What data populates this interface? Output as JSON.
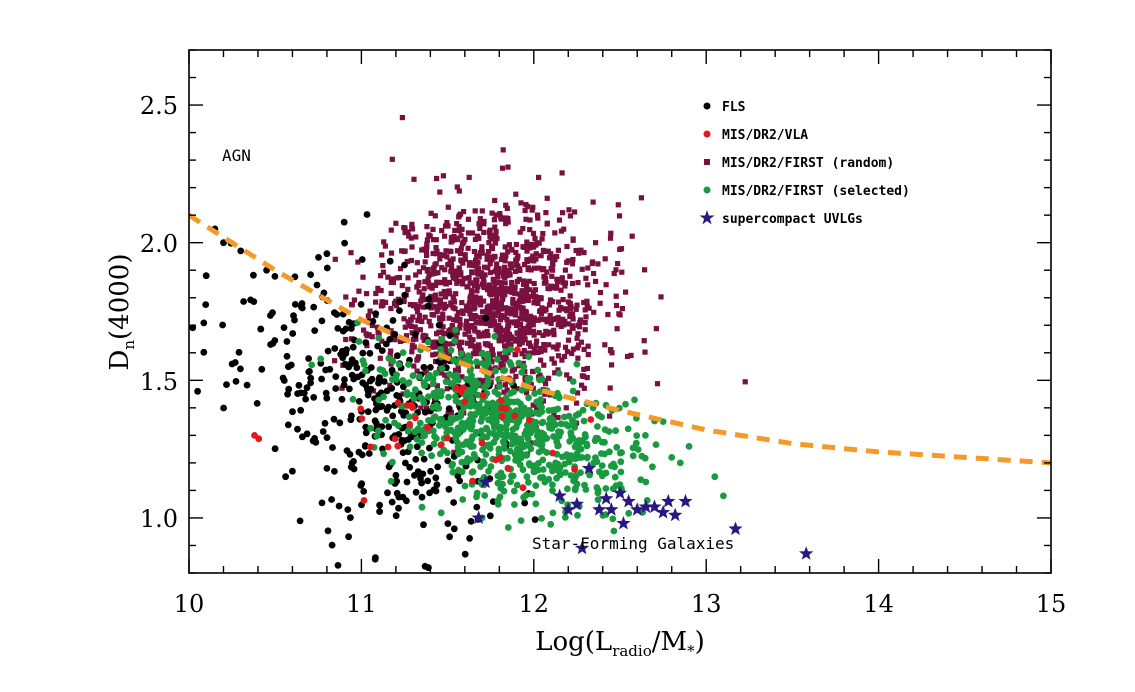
{
  "chart_data": {
    "type": "scatter",
    "xlabel": "Log(L",
    "xlabel_sub1": "radio",
    "xlabel_mid": "/M",
    "xlabel_sub2": "*",
    "xlabel_end": ")",
    "ylabel": "D",
    "ylabel_sub": "n",
    "ylabel_end": "(4000)",
    "xlim": [
      10,
      15
    ],
    "ylim": [
      0.8,
      2.7
    ],
    "xticks": [
      "10",
      "11",
      "12",
      "13",
      "14",
      "15"
    ],
    "yticks": [
      "1.0",
      "1.5",
      "2.0",
      "2.5"
    ],
    "annotations": {
      "agn": "AGN",
      "sf": "Star-Forming Galaxies"
    },
    "legend": [
      {
        "label": "FLS",
        "color": "#000000",
        "marker": "circle"
      },
      {
        "label": "MIS/DR2/VLA",
        "color": "#e0191f",
        "marker": "circle"
      },
      {
        "label": "MIS/DR2/FIRST (random)",
        "color": "#7a1040",
        "marker": "square"
      },
      {
        "label": "MIS/DR2/FIRST (selected)",
        "color": "#1a9a40",
        "marker": "circle"
      },
      {
        "label": "supercompact UVLGs",
        "color": "#2a1880",
        "marker": "star"
      }
    ],
    "divider_line": {
      "color": "#f39a2a",
      "x": [
        10.0,
        10.5,
        11.0,
        11.5,
        12.0,
        12.5,
        13.0,
        13.5,
        14.0,
        14.5,
        15.0
      ],
      "y": [
        2.1,
        1.9,
        1.72,
        1.58,
        1.47,
        1.39,
        1.32,
        1.27,
        1.24,
        1.22,
        1.2
      ]
    },
    "series": [
      {
        "name": "MIS/DR2/FIRST (random)",
        "cloud": {
          "cx": 11.75,
          "cy": 1.78,
          "sx": 0.32,
          "sy": 0.18,
          "n": 1300,
          "seed": 11
        }
      },
      {
        "name": "FLS",
        "cloud": {
          "cx": 11.05,
          "cy": 1.42,
          "sx": 0.38,
          "sy": 0.22,
          "n": 380,
          "seed": 23
        },
        "extra": [
          [
            10.05,
            1.46
          ],
          [
            10.1,
            1.88
          ],
          [
            10.15,
            2.05
          ],
          [
            10.2,
            2.0
          ],
          [
            10.3,
            1.97
          ],
          [
            10.45,
            1.9
          ],
          [
            10.6,
            1.17
          ],
          [
            10.8,
            1.18
          ],
          [
            11.08,
            0.85
          ]
        ]
      },
      {
        "name": "MIS/DR2/FIRST (selected)",
        "cloud": {
          "cx": 11.85,
          "cy": 1.33,
          "sx": 0.35,
          "sy": 0.13,
          "n": 700,
          "seed": 37
        },
        "extra": [
          [
            12.8,
            1.22
          ],
          [
            12.85,
            1.2
          ],
          [
            12.9,
            1.26
          ],
          [
            13.05,
            1.15
          ],
          [
            13.1,
            1.08
          ],
          [
            12.75,
            1.35
          ],
          [
            11.7,
            1.0
          ]
        ]
      },
      {
        "name": "MIS/DR2/VLA",
        "cloud": {
          "cx": 11.6,
          "cy": 1.35,
          "sx": 0.45,
          "sy": 0.12,
          "n": 40,
          "seed": 53
        },
        "extra": [
          [
            10.38,
            1.3
          ]
        ]
      },
      {
        "name": "supercompact UVLGs",
        "points": [
          [
            11.68,
            1.0
          ],
          [
            11.72,
            1.13
          ],
          [
            12.15,
            1.08
          ],
          [
            12.2,
            1.03
          ],
          [
            12.25,
            1.05
          ],
          [
            12.28,
            0.89
          ],
          [
            12.32,
            1.18
          ],
          [
            12.38,
            1.03
          ],
          [
            12.42,
            1.07
          ],
          [
            12.45,
            1.03
          ],
          [
            12.5,
            1.09
          ],
          [
            12.52,
            0.98
          ],
          [
            12.55,
            1.06
          ],
          [
            12.6,
            1.03
          ],
          [
            12.65,
            1.04
          ],
          [
            12.7,
            1.04
          ],
          [
            12.75,
            1.02
          ],
          [
            12.78,
            1.06
          ],
          [
            12.82,
            1.01
          ],
          [
            12.88,
            1.06
          ],
          [
            13.17,
            0.96
          ],
          [
            13.58,
            0.87
          ]
        ]
      }
    ]
  }
}
